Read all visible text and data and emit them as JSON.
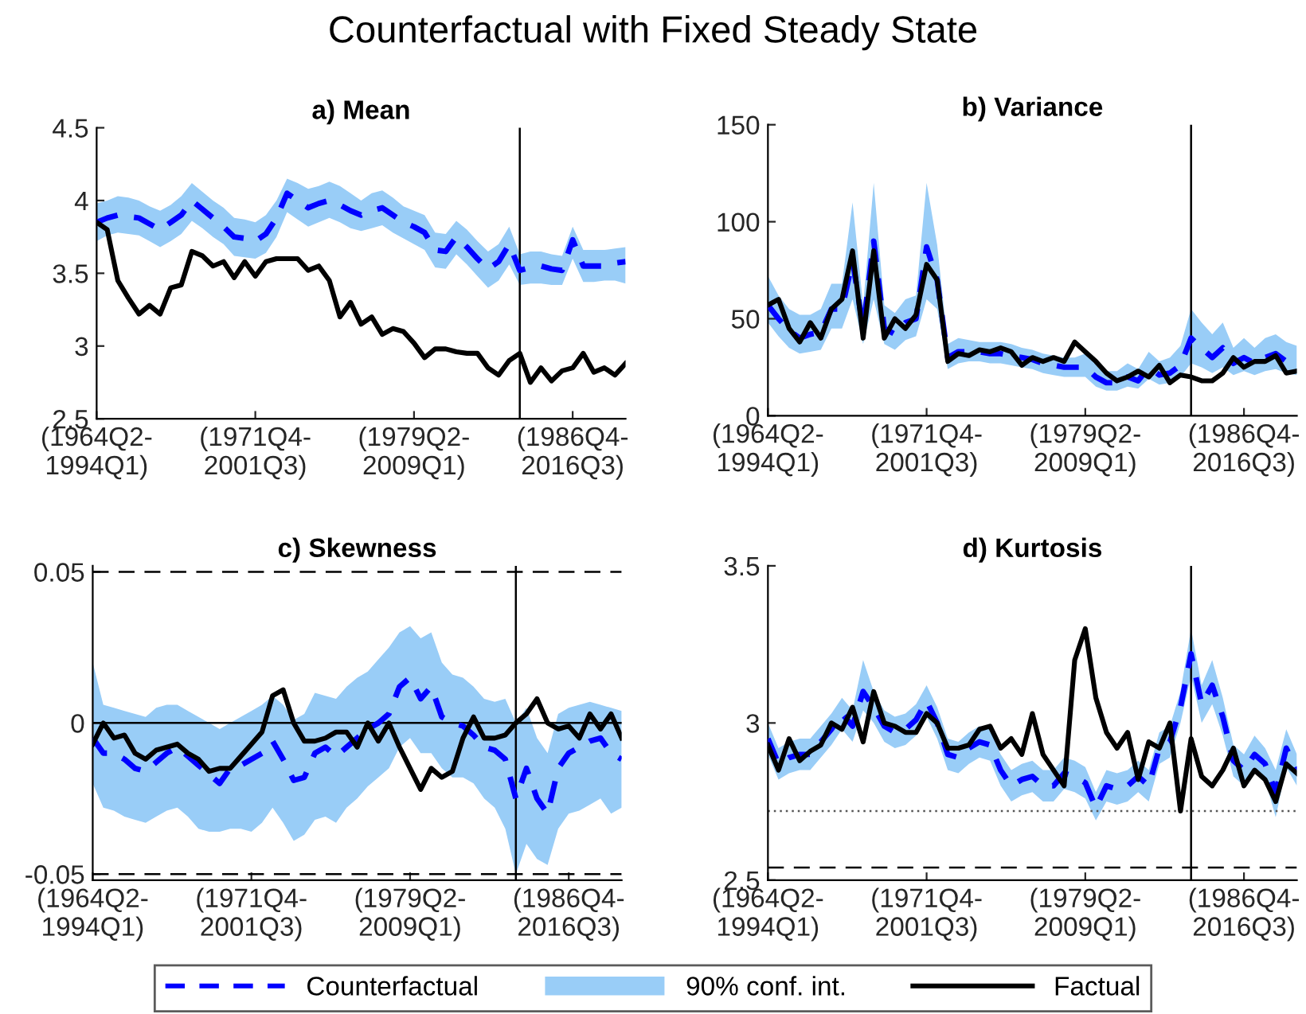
{
  "chart_data": [
    {
      "type": "line",
      "title": "a) Mean",
      "annotations": [
        "Counterfactual with Fixed Steady State",
        "90% conf. int."
      ],
      "categories": [
        "(1964Q2-\n1994Q1)",
        null,
        null,
        null,
        null,
        null,
        null,
        null,
        null,
        null,
        null,
        null,
        null,
        null,
        null,
        "(1971Q4-\n2001Q3)",
        null,
        null,
        null,
        null,
        null,
        null,
        null,
        null,
        null,
        null,
        null,
        null,
        null,
        null,
        "(1979Q2-\n2009Q1)",
        null,
        null,
        null,
        null,
        null,
        null,
        null,
        null,
        null,
        null,
        null,
        null,
        null,
        null,
        "(1986Q4-\n2016Q3)",
        null,
        null,
        null,
        null,
        null
      ],
      "ylim": [
        2.5,
        4.5
      ],
      "yticks": [
        2.5,
        3,
        3.5,
        4,
        4.5
      ],
      "legend": "bottom",
      "series": [
        {
          "name": "Counterfactual",
          "color": "#0000ff",
          "line_style": "dashed",
          "values": [
            3.85,
            3.88,
            3.9,
            3.89,
            3.88,
            3.84,
            3.8,
            3.85,
            3.9,
            4.0,
            3.94,
            3.88,
            3.82,
            3.75,
            3.74,
            3.72,
            3.77,
            3.88,
            4.05,
            4.0,
            3.95,
            3.98,
            4.0,
            3.97,
            3.93,
            3.9,
            3.93,
            3.95,
            3.9,
            3.85,
            3.82,
            3.78,
            3.66,
            3.65,
            3.75,
            3.68,
            3.6,
            3.53,
            3.58,
            3.7,
            3.52,
            3.54,
            3.55,
            3.53,
            3.52,
            3.73,
            3.55,
            3.55,
            3.55,
            3.57,
            3.58
          ],
          "lower": [
            3.72,
            3.76,
            3.78,
            3.77,
            3.76,
            3.72,
            3.68,
            3.72,
            3.77,
            3.86,
            3.81,
            3.75,
            3.7,
            3.62,
            3.61,
            3.6,
            3.64,
            3.75,
            3.92,
            3.87,
            3.82,
            3.85,
            3.88,
            3.85,
            3.81,
            3.79,
            3.81,
            3.83,
            3.78,
            3.74,
            3.7,
            3.66,
            3.54,
            3.53,
            3.63,
            3.56,
            3.48,
            3.4,
            3.45,
            3.56,
            3.42,
            3.43,
            3.43,
            3.42,
            3.42,
            3.6,
            3.44,
            3.44,
            3.45,
            3.45,
            3.43
          ],
          "upper": [
            3.98,
            4.0,
            4.03,
            4.02,
            4.0,
            3.96,
            3.93,
            3.97,
            4.03,
            4.12,
            4.06,
            4.0,
            3.95,
            3.88,
            3.87,
            3.85,
            3.9,
            4.0,
            4.15,
            4.12,
            4.08,
            4.1,
            4.13,
            4.1,
            4.05,
            4.0,
            4.05,
            4.07,
            4.02,
            3.96,
            3.93,
            3.9,
            3.78,
            3.77,
            3.86,
            3.8,
            3.72,
            3.65,
            3.7,
            3.82,
            3.63,
            3.65,
            3.65,
            3.63,
            3.62,
            3.82,
            3.66,
            3.66,
            3.66,
            3.67,
            3.68
          ]
        },
        {
          "name": "Factual",
          "color": "#000000",
          "line_style": "solid",
          "values": [
            3.85,
            3.8,
            3.45,
            3.33,
            3.22,
            3.28,
            3.22,
            3.4,
            3.42,
            3.65,
            3.62,
            3.55,
            3.58,
            3.47,
            3.58,
            3.48,
            3.58,
            3.6,
            3.6,
            3.6,
            3.52,
            3.55,
            3.45,
            3.2,
            3.3,
            3.15,
            3.2,
            3.08,
            3.12,
            3.1,
            3.02,
            2.92,
            2.98,
            2.98,
            2.96,
            2.95,
            2.95,
            2.85,
            2.8,
            2.9,
            2.95,
            2.75,
            2.85,
            2.76,
            2.83,
            2.85,
            2.95,
            2.82,
            2.85,
            2.8,
            2.88
          ]
        }
      ]
    },
    {
      "type": "line",
      "title": "b) Variance",
      "categories": [
        "(1964Q2-\n1994Q1)",
        null,
        null,
        null,
        null,
        null,
        null,
        null,
        null,
        null,
        null,
        null,
        null,
        null,
        null,
        "(1971Q4-\n2001Q3)",
        null,
        null,
        null,
        null,
        null,
        null,
        null,
        null,
        null,
        null,
        null,
        null,
        null,
        null,
        "(1979Q2-\n2009Q1)",
        null,
        null,
        null,
        null,
        null,
        null,
        null,
        null,
        null,
        null,
        null,
        null,
        null,
        null,
        "(1986Q4-\n2016Q3)",
        null,
        null,
        null,
        null,
        null
      ],
      "ylim": [
        0,
        150
      ],
      "yticks": [
        0,
        50,
        100,
        150
      ],
      "series": [
        {
          "color": "#0000ff",
          "line_style": "dashed",
          "values": [
            57,
            50,
            44,
            40,
            42,
            43,
            55,
            55,
            80,
            45,
            90,
            45,
            42,
            48,
            50,
            87,
            70,
            30,
            33,
            33,
            33,
            32,
            32,
            31,
            30,
            29,
            27,
            26,
            25,
            25,
            25,
            20,
            17,
            17,
            20,
            18,
            25,
            21,
            22,
            26,
            40,
            35,
            30,
            35,
            27,
            30,
            27,
            30,
            32,
            28,
            27
          ],
          "lower": [
            48,
            41,
            35,
            32,
            33,
            34,
            45,
            45,
            60,
            37,
            60,
            37,
            34,
            39,
            41,
            60,
            55,
            24,
            27,
            28,
            28,
            27,
            27,
            26,
            25,
            24,
            22,
            21,
            20,
            20,
            20,
            15,
            13,
            13,
            15,
            14,
            19,
            16,
            17,
            20,
            27,
            25,
            22,
            25,
            21,
            23,
            21,
            23,
            24,
            22,
            21
          ],
          "upper": [
            72,
            62,
            55,
            52,
            52,
            55,
            68,
            68,
            110,
            57,
            120,
            57,
            53,
            60,
            62,
            120,
            88,
            37,
            40,
            39,
            38,
            38,
            38,
            37,
            35,
            34,
            32,
            31,
            30,
            30,
            32,
            27,
            23,
            23,
            27,
            24,
            33,
            28,
            30,
            36,
            55,
            48,
            42,
            48,
            35,
            40,
            35,
            40,
            42,
            38,
            36
          ]
        },
        {
          "color": "#000000",
          "line_style": "solid",
          "values": [
            57,
            60,
            45,
            38,
            48,
            40,
            55,
            60,
            85,
            40,
            85,
            40,
            50,
            45,
            52,
            78,
            70,
            28,
            32,
            31,
            34,
            33,
            35,
            33,
            26,
            30,
            28,
            30,
            28,
            38,
            33,
            28,
            22,
            18,
            20,
            23,
            20,
            26,
            17,
            21,
            20,
            18,
            18,
            22,
            30,
            25,
            28,
            28,
            31,
            22,
            23
          ]
        }
      ]
    },
    {
      "type": "line",
      "title": "c) Skewness",
      "categories": [
        "(1964Q2-\n1994Q1)",
        null,
        null,
        null,
        null,
        null,
        null,
        null,
        null,
        null,
        null,
        null,
        null,
        null,
        null,
        "(1971Q4-\n2001Q3)",
        null,
        null,
        null,
        null,
        null,
        null,
        null,
        null,
        null,
        null,
        null,
        null,
        null,
        null,
        "(1979Q2-\n2009Q1)",
        null,
        null,
        null,
        null,
        null,
        null,
        null,
        null,
        null,
        null,
        null,
        null,
        null,
        null,
        "(1986Q4-\n2016Q3)",
        null,
        null,
        null,
        null,
        null
      ],
      "ylim": [
        -0.052,
        0.052
      ],
      "yticks": [
        {
          "value": -0.05,
          "label": "-0.05"
        },
        0,
        0.05
      ],
      "ref_lines": [
        {
          "axis": "y",
          "value": 0,
          "label": null,
          "color": "#000000",
          "line_style": "solid"
        },
        {
          "axis": "y",
          "value": 0.05,
          "label": null,
          "color": "#000000",
          "line_style": "dashed"
        },
        {
          "axis": "y",
          "value": -0.05,
          "label": null,
          "color": "#000000",
          "line_style": "dashed"
        }
      ],
      "series": [
        {
          "color": "#0000ff",
          "line_style": "dashed",
          "values": [
            -0.005,
            -0.01,
            -0.01,
            -0.012,
            -0.015,
            -0.016,
            -0.013,
            -0.01,
            -0.008,
            -0.011,
            -0.014,
            -0.017,
            -0.02,
            -0.015,
            -0.014,
            -0.012,
            -0.01,
            -0.006,
            -0.012,
            -0.019,
            -0.018,
            -0.01,
            -0.008,
            -0.011,
            -0.008,
            -0.005,
            -0.002,
            0.0,
            0.003,
            0.012,
            0.015,
            0.008,
            0.012,
            0.002,
            0.0,
            -0.001,
            -0.004,
            -0.008,
            -0.009,
            -0.012,
            -0.025,
            -0.015,
            -0.025,
            -0.03,
            -0.015,
            -0.01,
            -0.008,
            -0.006,
            -0.005,
            -0.01,
            -0.012
          ],
          "lower": [
            -0.02,
            -0.028,
            -0.029,
            -0.031,
            -0.032,
            -0.033,
            -0.031,
            -0.029,
            -0.028,
            -0.031,
            -0.035,
            -0.036,
            -0.036,
            -0.035,
            -0.035,
            -0.036,
            -0.033,
            -0.028,
            -0.033,
            -0.039,
            -0.037,
            -0.032,
            -0.031,
            -0.033,
            -0.028,
            -0.025,
            -0.021,
            -0.018,
            -0.015,
            -0.008,
            -0.005,
            -0.01,
            -0.01,
            -0.015,
            -0.018,
            -0.018,
            -0.02,
            -0.025,
            -0.028,
            -0.035,
            -0.05,
            -0.04,
            -0.045,
            -0.047,
            -0.035,
            -0.03,
            -0.029,
            -0.027,
            -0.025,
            -0.03,
            -0.028
          ],
          "upper": [
            0.02,
            0.006,
            0.005,
            0.004,
            0.003,
            0.002,
            0.005,
            0.006,
            0.006,
            0.004,
            0.002,
            0.0,
            -0.002,
            0.0,
            0.002,
            0.004,
            0.006,
            0.009,
            0.006,
            0.001,
            0.003,
            0.01,
            0.009,
            0.008,
            0.012,
            0.015,
            0.017,
            0.021,
            0.025,
            0.03,
            0.032,
            0.028,
            0.03,
            0.02,
            0.016,
            0.015,
            0.012,
            0.008,
            0.007,
            0.008,
            0.0,
            0.005,
            -0.005,
            -0.01,
            0.003,
            0.005,
            0.006,
            0.007,
            0.006,
            0.005,
            0.004
          ]
        },
        {
          "color": "#000000",
          "line_style": "solid",
          "values": [
            -0.007,
            0.0,
            -0.005,
            -0.004,
            -0.01,
            -0.012,
            -0.009,
            -0.008,
            -0.007,
            -0.01,
            -0.012,
            -0.016,
            -0.015,
            -0.015,
            -0.011,
            -0.007,
            -0.003,
            0.009,
            0.011,
            0.0,
            -0.006,
            -0.006,
            -0.005,
            -0.003,
            -0.003,
            -0.008,
            0.0,
            -0.006,
            0.0,
            -0.008,
            -0.015,
            -0.022,
            -0.015,
            -0.018,
            -0.016,
            -0.005,
            0.002,
            -0.005,
            -0.005,
            -0.004,
            0.0,
            0.003,
            0.008,
            0.0,
            -0.002,
            -0.001,
            -0.005,
            0.003,
            -0.002,
            0.003,
            -0.005
          ]
        }
      ]
    },
    {
      "type": "line",
      "title": "d) Kurtosis",
      "categories": [
        "(1964Q2-\n1994Q1)",
        null,
        null,
        null,
        null,
        null,
        null,
        null,
        null,
        null,
        null,
        null,
        null,
        null,
        null,
        "(1971Q4-\n2001Q3)",
        null,
        null,
        null,
        null,
        null,
        null,
        null,
        null,
        null,
        null,
        null,
        null,
        null,
        null,
        "(1979Q2-\n2009Q1)",
        null,
        null,
        null,
        null,
        null,
        null,
        null,
        null,
        null,
        null,
        null,
        null,
        null,
        null,
        "(1986Q4-\n2016Q3)",
        null,
        null,
        null,
        null,
        null
      ],
      "ylim": [
        2.5,
        3.5
      ],
      "yticks": [
        2.5,
        3,
        3.5
      ],
      "ref_lines": [
        {
          "axis": "y",
          "value": 2.72,
          "label": null,
          "color": "#555555",
          "line_style": "dotted"
        },
        {
          "axis": "y",
          "value": 2.54,
          "label": null,
          "color": "#000000",
          "line_style": "dashed"
        }
      ],
      "series": [
        {
          "color": "#0000ff",
          "line_style": "dashed",
          "values": [
            2.95,
            2.87,
            2.89,
            2.9,
            2.9,
            2.94,
            2.98,
            3.03,
            2.99,
            3.1,
            3.05,
            2.99,
            2.97,
            2.98,
            3.01,
            3.07,
            3.0,
            2.9,
            2.89,
            2.92,
            2.94,
            2.93,
            2.85,
            2.8,
            2.82,
            2.83,
            2.8,
            2.8,
            2.84,
            2.83,
            2.81,
            2.73,
            2.8,
            2.79,
            2.8,
            2.83,
            2.8,
            2.92,
            2.94,
            3.05,
            3.22,
            3.06,
            3.12,
            3.02,
            2.88,
            2.85,
            2.9,
            2.87,
            2.78,
            2.92,
            2.85
          ],
          "lower": [
            2.9,
            2.82,
            2.84,
            2.85,
            2.85,
            2.89,
            2.93,
            2.98,
            2.94,
            3.04,
            3.0,
            2.94,
            2.92,
            2.93,
            2.96,
            3.02,
            2.95,
            2.85,
            2.84,
            2.87,
            2.89,
            2.88,
            2.8,
            2.75,
            2.77,
            2.78,
            2.75,
            2.75,
            2.79,
            2.78,
            2.76,
            2.69,
            2.75,
            2.74,
            2.75,
            2.78,
            2.75,
            2.87,
            2.89,
            3.0,
            3.15,
            3.0,
            3.06,
            2.96,
            2.83,
            2.8,
            2.84,
            2.82,
            2.7,
            2.86,
            2.8
          ],
          "upper": [
            3.0,
            2.92,
            2.94,
            2.95,
            2.95,
            2.99,
            3.03,
            3.08,
            3.04,
            3.2,
            3.1,
            3.04,
            3.02,
            3.03,
            3.06,
            3.12,
            3.05,
            2.95,
            2.94,
            2.97,
            2.99,
            2.98,
            2.9,
            2.85,
            2.87,
            2.88,
            2.85,
            2.85,
            2.89,
            2.88,
            2.86,
            2.78,
            2.85,
            2.84,
            2.85,
            2.88,
            2.85,
            2.97,
            2.99,
            3.1,
            3.3,
            3.12,
            3.2,
            3.08,
            2.93,
            2.9,
            2.96,
            2.92,
            2.85,
            2.98,
            2.9
          ]
        },
        {
          "color": "#000000",
          "line_style": "solid",
          "values": [
            2.93,
            2.85,
            2.95,
            2.88,
            2.91,
            2.93,
            3.0,
            2.98,
            3.05,
            2.94,
            3.1,
            3.0,
            2.99,
            2.97,
            2.97,
            3.03,
            3.0,
            2.92,
            2.92,
            2.93,
            2.98,
            2.99,
            2.92,
            2.95,
            2.9,
            3.03,
            2.9,
            2.85,
            2.8,
            3.2,
            3.3,
            3.08,
            2.97,
            2.92,
            2.97,
            2.82,
            2.94,
            2.92,
            3.0,
            2.72,
            2.95,
            2.83,
            2.8,
            2.85,
            2.92,
            2.8,
            2.85,
            2.82,
            2.75,
            2.87,
            2.84
          ]
        }
      ]
    }
  ]
}
